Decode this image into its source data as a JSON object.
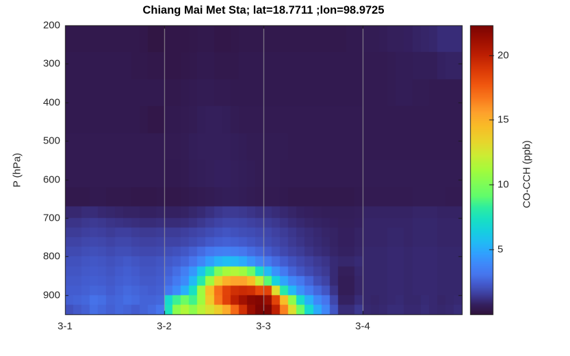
{
  "chart_data": {
    "type": "heatmap",
    "title": "Chiang Mai Met Sta; lat=18.7711 ;lon=98.9725",
    "xlabel": "",
    "ylabel": "P (hPa)",
    "x_ticks": [
      "3-1",
      "3-2",
      "3-3",
      "3-4"
    ],
    "x_tick_days": [
      0,
      1,
      2,
      3
    ],
    "x_range_days": [
      0,
      4
    ],
    "time_step_hours": 2,
    "n_time_cols": 48,
    "y_ticks": [
      200,
      300,
      400,
      500,
      600,
      700,
      800,
      900
    ],
    "y_range": [
      200,
      950
    ],
    "y_axis_direction": "pressure increases downward",
    "pressure_edges_hPa": [
      200,
      270,
      340,
      410,
      480,
      550,
      620,
      670,
      700,
      725,
      750,
      775,
      800,
      825,
      850,
      875,
      900,
      925,
      950
    ],
    "colorbar": {
      "label": "CO-CCH (ppb)",
      "ticks": [
        5,
        10,
        15,
        20
      ],
      "range": [
        0,
        22.3
      ],
      "colormap": "turbo"
    },
    "grid": {
      "vertical_gridlines_at_days": [
        1,
        2,
        3
      ],
      "gridline_color": "#a0a0a0",
      "horizontal_gridlines": false
    },
    "values_note": "values_ppb rows follow pressure_edges_hPa bands top(200hPa) to bottom(950hPa); each row has 48 columns = 2-hourly steps from 3-1 00:00 to 3-4 22:00",
    "values_ppb": [
      [
        0.4,
        0.4,
        0.4,
        0.4,
        0.4,
        0.4,
        0.4,
        0.4,
        0.4,
        0.35,
        0.2,
        0.2,
        0.3,
        0.3,
        0.3,
        0.35,
        0.4,
        0.4,
        0.3,
        0.3,
        0.35,
        0.4,
        0.4,
        0.4,
        0.4,
        0.4,
        0.4,
        0.4,
        0.4,
        0.4,
        0.4,
        0.4,
        0.4,
        0.4,
        0.45,
        0.45,
        0.55,
        0.55,
        0.6,
        0.7,
        0.7,
        0.75,
        0.85,
        0.9,
        0.95,
        1.1,
        1.1,
        1.1
      ],
      [
        0.45,
        0.45,
        0.45,
        0.45,
        0.45,
        0.45,
        0.45,
        0.45,
        0.4,
        0.4,
        0.35,
        0.35,
        0.3,
        0.3,
        0.35,
        0.4,
        0.45,
        0.45,
        0.4,
        0.4,
        0.4,
        0.45,
        0.45,
        0.45,
        0.45,
        0.45,
        0.45,
        0.45,
        0.45,
        0.45,
        0.45,
        0.45,
        0.45,
        0.45,
        0.45,
        0.45,
        0.5,
        0.5,
        0.5,
        0.55,
        0.6,
        0.6,
        0.65,
        0.65,
        0.65,
        0.8,
        0.85,
        0.85
      ],
      [
        0.45,
        0.45,
        0.45,
        0.45,
        0.45,
        0.45,
        0.45,
        0.45,
        0.45,
        0.45,
        0.45,
        0.45,
        0.4,
        0.4,
        0.45,
        0.5,
        0.55,
        0.55,
        0.5,
        0.5,
        0.45,
        0.45,
        0.45,
        0.45,
        0.45,
        0.45,
        0.45,
        0.45,
        0.45,
        0.45,
        0.45,
        0.45,
        0.45,
        0.45,
        0.45,
        0.45,
        0.5,
        0.5,
        0.5,
        0.55,
        0.6,
        0.6,
        0.55,
        0.55,
        0.5,
        0.5,
        0.5,
        0.5
      ],
      [
        0.45,
        0.45,
        0.45,
        0.45,
        0.45,
        0.45,
        0.45,
        0.45,
        0.45,
        0.4,
        0.3,
        0.3,
        0.45,
        0.45,
        0.5,
        0.55,
        0.65,
        0.7,
        0.7,
        0.65,
        0.55,
        0.5,
        0.5,
        0.5,
        0.5,
        0.5,
        0.5,
        0.5,
        0.5,
        0.5,
        0.5,
        0.5,
        0.5,
        0.5,
        0.5,
        0.5,
        0.5,
        0.5,
        0.5,
        0.5,
        0.5,
        0.5,
        0.5,
        0.5,
        0.5,
        0.5,
        0.5,
        0.5
      ],
      [
        0.5,
        0.5,
        0.5,
        0.5,
        0.5,
        0.5,
        0.5,
        0.5,
        0.5,
        0.5,
        0.5,
        0.5,
        0.5,
        0.5,
        0.55,
        0.65,
        0.7,
        0.7,
        0.7,
        0.7,
        0.65,
        0.6,
        0.55,
        0.55,
        0.55,
        0.55,
        0.55,
        0.5,
        0.5,
        0.5,
        0.5,
        0.5,
        0.5,
        0.5,
        0.5,
        0.5,
        0.5,
        0.5,
        0.5,
        0.5,
        0.5,
        0.5,
        0.5,
        0.5,
        0.5,
        0.5,
        0.5,
        0.5
      ],
      [
        0.5,
        0.5,
        0.5,
        0.5,
        0.5,
        0.5,
        0.5,
        0.5,
        0.5,
        0.5,
        0.5,
        0.5,
        0.45,
        0.45,
        0.5,
        0.6,
        0.65,
        0.7,
        0.75,
        0.75,
        0.7,
        0.65,
        0.6,
        0.55,
        0.55,
        0.55,
        0.5,
        0.5,
        0.5,
        0.5,
        0.5,
        0.5,
        0.5,
        0.5,
        0.5,
        0.5,
        0.55,
        0.55,
        0.55,
        0.55,
        0.55,
        0.55,
        0.55,
        0.55,
        0.55,
        0.55,
        0.55,
        0.55
      ],
      [
        0.4,
        0.4,
        0.4,
        0.45,
        0.45,
        0.4,
        0.4,
        0.4,
        0.35,
        0.35,
        0.35,
        0.4,
        0.35,
        0.35,
        0.4,
        0.45,
        0.5,
        0.55,
        0.6,
        0.65,
        0.65,
        0.6,
        0.55,
        0.5,
        0.5,
        0.5,
        0.45,
        0.4,
        0.4,
        0.4,
        0.4,
        0.4,
        0.4,
        0.4,
        0.4,
        0.45,
        0.5,
        0.5,
        0.5,
        0.5,
        0.5,
        0.5,
        0.55,
        0.55,
        0.55,
        0.55,
        0.5,
        0.5
      ],
      [
        1.0,
        1.0,
        1.1,
        1.1,
        1.0,
        0.95,
        0.9,
        0.85,
        0.85,
        0.8,
        0.8,
        0.85,
        0.8,
        0.8,
        0.85,
        0.95,
        1.05,
        1.2,
        1.35,
        1.45,
        1.45,
        1.4,
        1.3,
        1.2,
        1.2,
        1.1,
        1.0,
        0.9,
        0.8,
        0.75,
        0.7,
        0.65,
        0.65,
        0.65,
        0.65,
        0.7,
        0.85,
        0.85,
        0.85,
        0.85,
        0.85,
        0.85,
        0.9,
        0.9,
        0.9,
        0.85,
        0.85,
        0.85
      ],
      [
        1.3,
        1.3,
        1.4,
        1.45,
        1.4,
        1.3,
        1.25,
        1.2,
        1.15,
        1.1,
        1.1,
        1.15,
        1.1,
        1.1,
        1.15,
        1.25,
        1.4,
        1.55,
        1.7,
        1.8,
        1.8,
        1.75,
        1.65,
        1.55,
        1.5,
        1.4,
        1.25,
        1.1,
        1.0,
        0.9,
        0.85,
        0.8,
        0.75,
        0.7,
        0.7,
        0.75,
        0.9,
        0.9,
        0.9,
        0.9,
        0.9,
        0.9,
        0.95,
        0.95,
        0.95,
        0.9,
        0.9,
        0.9
      ],
      [
        1.5,
        1.5,
        1.6,
        1.65,
        1.6,
        1.5,
        1.6,
        1.6,
        1.5,
        1.45,
        1.45,
        1.5,
        1.5,
        1.5,
        1.6,
        1.7,
        1.8,
        1.95,
        2.1,
        2.2,
        2.1,
        2.0,
        1.95,
        1.85,
        1.8,
        1.65,
        1.5,
        1.35,
        1.2,
        1.1,
        1.0,
        0.9,
        0.85,
        0.75,
        0.75,
        0.85,
        0.9,
        0.9,
        0.9,
        0.95,
        0.95,
        0.9,
        0.95,
        0.95,
        0.95,
        0.9,
        0.9,
        0.9
      ],
      [
        1.7,
        1.7,
        1.8,
        1.85,
        1.8,
        1.7,
        1.8,
        1.8,
        1.7,
        1.65,
        1.65,
        1.7,
        1.7,
        1.7,
        1.8,
        1.95,
        2.1,
        2.3,
        2.45,
        2.55,
        2.45,
        2.35,
        2.2,
        2.05,
        1.95,
        1.8,
        1.65,
        1.45,
        1.3,
        1.15,
        1.05,
        0.95,
        0.85,
        0.75,
        0.75,
        0.85,
        0.9,
        0.9,
        0.9,
        0.95,
        0.95,
        0.9,
        0.95,
        0.95,
        0.95,
        0.9,
        0.9,
        0.9
      ],
      [
        1.9,
        1.9,
        2.0,
        2.05,
        2.0,
        1.9,
        2.0,
        2.0,
        1.9,
        1.85,
        1.85,
        1.9,
        2.0,
        2.1,
        2.25,
        2.5,
        2.85,
        3.2,
        3.45,
        3.55,
        3.4,
        3.15,
        2.85,
        2.6,
        2.35,
        2.1,
        1.85,
        1.65,
        1.5,
        1.3,
        1.15,
        1.05,
        0.9,
        0.8,
        0.8,
        0.9,
        0.95,
        0.95,
        0.95,
        1.0,
        1.0,
        0.95,
        1.0,
        1.0,
        1.0,
        0.95,
        0.95,
        0.95
      ],
      [
        2.1,
        2.1,
        2.2,
        2.25,
        2.2,
        2.1,
        2.2,
        2.3,
        2.2,
        2.1,
        2.1,
        2.2,
        2.3,
        2.45,
        2.7,
        3.1,
        3.8,
        4.6,
        5.3,
        5.7,
        5.5,
        5.0,
        4.3,
        3.7,
        3.2,
        2.8,
        2.4,
        2.1,
        1.85,
        1.65,
        1.45,
        1.3,
        1.05,
        0.95,
        0.95,
        1.05,
        0.95,
        0.95,
        0.95,
        1.0,
        1.0,
        0.95,
        1.0,
        1.0,
        1.0,
        0.95,
        0.95,
        0.95
      ],
      [
        2.2,
        2.2,
        2.3,
        2.35,
        2.3,
        2.2,
        2.35,
        2.45,
        2.35,
        2.2,
        2.2,
        2.3,
        2.55,
        2.9,
        3.5,
        4.4,
        6.0,
        8.0,
        10.0,
        11.2,
        11.5,
        11.0,
        9.5,
        7.2,
        5.5,
        4.2,
        3.3,
        2.6,
        2.2,
        1.9,
        1.65,
        1.45,
        1.05,
        0.7,
        0.7,
        0.95,
        0.95,
        0.95,
        0.95,
        1.0,
        1.0,
        0.95,
        1.0,
        1.0,
        1.0,
        0.95,
        0.95,
        0.95
      ],
      [
        2.3,
        2.3,
        2.4,
        2.45,
        2.4,
        2.3,
        2.45,
        2.55,
        2.45,
        2.3,
        2.3,
        2.4,
        2.8,
        3.3,
        4.0,
        5.5,
        8.0,
        11.0,
        13.5,
        15.0,
        15.5,
        15.5,
        14.5,
        12.0,
        9.0,
        6.5,
        4.8,
        3.8,
        3.2,
        2.6,
        2.0,
        1.7,
        1.05,
        0.6,
        0.6,
        0.9,
        0.95,
        0.95,
        0.95,
        1.0,
        1.0,
        0.95,
        1.0,
        1.0,
        1.0,
        0.95,
        0.95,
        0.95
      ],
      [
        2.4,
        2.4,
        2.5,
        2.65,
        2.6,
        2.4,
        2.6,
        2.75,
        2.65,
        2.5,
        2.4,
        2.5,
        3.2,
        4.0,
        5.2,
        7.4,
        11.0,
        14.5,
        17.0,
        18.5,
        19.3,
        19.5,
        19.3,
        18.3,
        18.5,
        13.0,
        8.0,
        5.5,
        4.2,
        3.3,
        2.7,
        2.2,
        1.3,
        0.6,
        0.6,
        0.9,
        0.95,
        0.95,
        0.95,
        1.0,
        1.0,
        0.95,
        1.0,
        1.0,
        1.0,
        0.95,
        0.95,
        0.95
      ],
      [
        2.5,
        2.6,
        2.7,
        3.0,
        2.9,
        2.6,
        2.7,
        2.9,
        2.8,
        2.6,
        2.6,
        2.7,
        7.0,
        8.5,
        9.5,
        8.6,
        11.0,
        14.0,
        16.8,
        18.6,
        20.0,
        21.0,
        21.8,
        22.0,
        21.3,
        18.5,
        14.5,
        10.5,
        7.2,
        5.2,
        3.9,
        3.1,
        1.8,
        0.8,
        0.8,
        1.1,
        0.95,
        0.9,
        0.95,
        1.0,
        1.05,
        0.95,
        0.95,
        1.05,
        1.0,
        0.9,
        0.95,
        1.0
      ],
      [
        2.1,
        2.3,
        2.5,
        2.9,
        2.7,
        2.5,
        2.7,
        2.6,
        2.4,
        2.6,
        2.8,
        3.1,
        7.5,
        10.5,
        11.5,
        10.5,
        11.8,
        12.8,
        13.8,
        15.2,
        17.2,
        19.3,
        21.3,
        22.2,
        22.2,
        20.0,
        16.5,
        13.0,
        9.5,
        7.0,
        5.0,
        3.8,
        2.2,
        1.1,
        1.1,
        1.4,
        1.0,
        0.95,
        1.0,
        1.1,
        1.1,
        1.0,
        1.0,
        1.1,
        1.0,
        0.95,
        1.0,
        1.1
      ]
    ]
  },
  "colors": {
    "background": "#ffffff",
    "axis_frame": "#1a1a1a",
    "tick_label": "#262626",
    "title_text": "#000000",
    "gridline": "#a0a0a0",
    "colormap_min_color": "#30123b",
    "colormap_max_color": "#7a0403"
  }
}
